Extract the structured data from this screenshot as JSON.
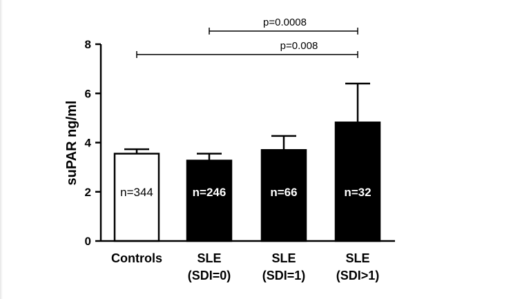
{
  "chart_data": {
    "type": "bar",
    "ylabel": "suPAR ng/ml",
    "xlabel": "",
    "ylim": [
      0,
      8
    ],
    "yticks": [
      "0",
      "2",
      "4",
      "6",
      "8"
    ],
    "categories": [
      {
        "line1": "Controls",
        "line2": ""
      },
      {
        "line1": "SLE",
        "line2": "(SDI=0)"
      },
      {
        "line1": "SLE",
        "line2": "(SDI=1)"
      },
      {
        "line1": "SLE",
        "line2": "(SDI>1)"
      }
    ],
    "values": [
      3.55,
      3.27,
      3.7,
      4.82
    ],
    "error_upper": [
      3.73,
      3.55,
      4.27,
      6.4
    ],
    "n_labels": [
      "n=344",
      "n=246",
      "n=66",
      "n=32"
    ],
    "bar_fills": [
      "#ffffff",
      "#000000",
      "#000000",
      "#000000"
    ],
    "n_label_colors": [
      "#000000",
      "#ffffff",
      "#ffffff",
      "#ffffff"
    ],
    "annotations": [
      {
        "text": "p=0.0008",
        "from": 1,
        "to": 3
      },
      {
        "text": "p=0.008",
        "from": 0,
        "to": 3
      }
    ],
    "grid": false,
    "legend": "none"
  }
}
